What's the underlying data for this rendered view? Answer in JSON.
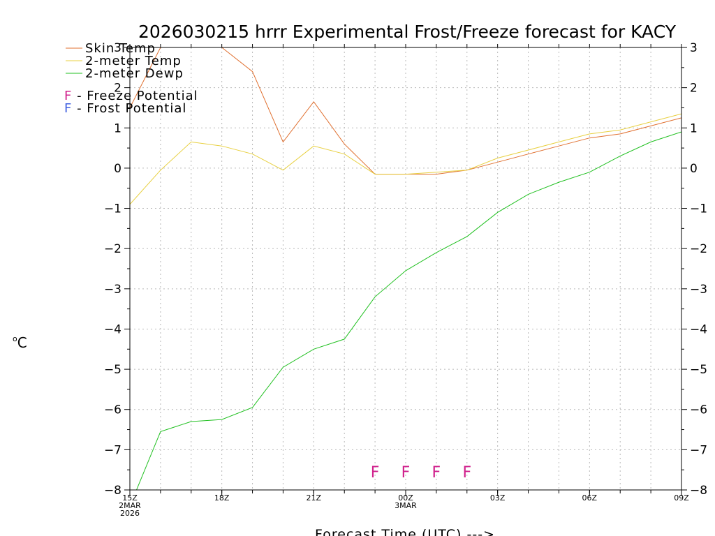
{
  "chart_data": {
    "type": "line",
    "title": "2026030215 hrrr Experimental Frost/Freeze forecast for KACY",
    "xlabel": "Forecast Time (UTC) --->",
    "ylabel": "°C",
    "ylabel_sup": "o",
    "ylabel_unit": "C",
    "ylim": [
      -8,
      3
    ],
    "xlim": [
      0,
      18
    ],
    "yticks": [
      -8,
      -7,
      -6,
      -5,
      -4,
      -3,
      -2,
      -1,
      0,
      1,
      2,
      3
    ],
    "ytick_labels": [
      "−8",
      "−7",
      "−6",
      "−5",
      "−4",
      "−3",
      "−2",
      "−1",
      "0",
      "1",
      "2",
      "3"
    ],
    "xticks": [
      {
        "x": 0,
        "lines": [
          "15Z",
          "2MAR",
          "2026"
        ]
      },
      {
        "x": 3,
        "lines": [
          "18Z"
        ]
      },
      {
        "x": 6,
        "lines": [
          "21Z"
        ]
      },
      {
        "x": 9,
        "lines": [
          "00Z",
          "3MAR"
        ]
      },
      {
        "x": 12,
        "lines": [
          "03Z"
        ]
      },
      {
        "x": 15,
        "lines": [
          "06Z"
        ]
      },
      {
        "x": 18,
        "lines": [
          "09Z"
        ]
      }
    ],
    "grid": true,
    "x": [
      0,
      1,
      2,
      3,
      4,
      5,
      6,
      7,
      8,
      9,
      10,
      11,
      12,
      13,
      14,
      15,
      16,
      17,
      18
    ],
    "series": [
      {
        "name": "Skin Temp",
        "color": "#e07030",
        "values": [
          1.5,
          3.0,
          3.0,
          3.0,
          2.4,
          0.65,
          1.65,
          0.6,
          -0.15,
          -0.15,
          -0.15,
          -0.05,
          0.15,
          0.35,
          0.55,
          0.75,
          0.85,
          1.05,
          1.25
        ]
      },
      {
        "name": "2-meter Temp",
        "color": "#e8d040",
        "values": [
          -0.9,
          -0.05,
          0.65,
          0.55,
          0.35,
          -0.05,
          0.55,
          0.35,
          -0.15,
          -0.15,
          -0.1,
          -0.05,
          0.25,
          0.45,
          0.65,
          0.85,
          0.95,
          1.15,
          1.35
        ]
      },
      {
        "name": "2-meter Dewp",
        "color": "#20c020",
        "values": [
          -8.4,
          -6.55,
          -6.3,
          -6.25,
          -5.95,
          -4.95,
          -4.5,
          -4.25,
          -3.2,
          -2.55,
          -2.1,
          -1.7,
          -1.1,
          -0.65,
          -0.35,
          -0.1,
          0.3,
          0.65,
          0.9
        ]
      }
    ],
    "legend": [
      {
        "label": "Skin Temp",
        "color": "#e07030"
      },
      {
        "label": "2-meter Temp",
        "color": "#e8d040"
      },
      {
        "label": "2-meter Dewp",
        "color": "#20c020"
      }
    ],
    "potential_legend": [
      {
        "letter": "F",
        "text": " - Freeze Potential",
        "color": "#d0208c"
      },
      {
        "letter": "F",
        "text": " - Frost Potential",
        "color": "#4060e0"
      }
    ],
    "markers": [
      {
        "x": 8,
        "label": "F",
        "color": "#d0208c"
      },
      {
        "x": 9,
        "label": "F",
        "color": "#d0208c"
      },
      {
        "x": 10,
        "label": "F",
        "color": "#d0208c"
      },
      {
        "x": 11,
        "label": "F",
        "color": "#d0208c"
      }
    ],
    "marker_y": -7.55
  }
}
